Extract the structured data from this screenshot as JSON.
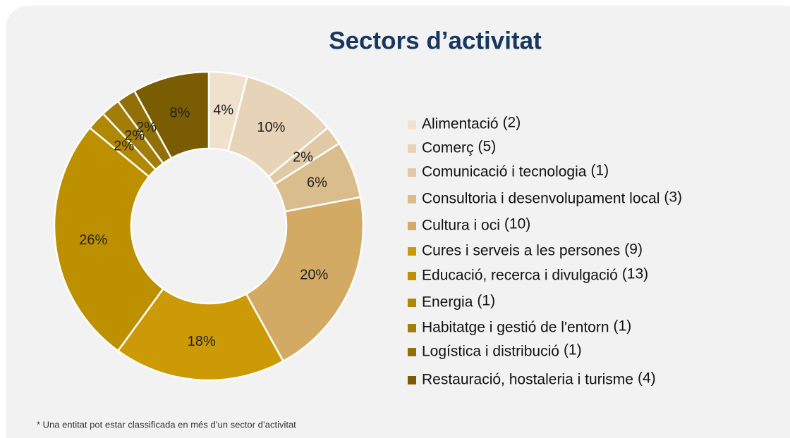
{
  "chart_data": {
    "type": "donut",
    "title": "Sectors d’activitat",
    "categories": [
      "Alimentació",
      "Comerç",
      "Comunicació i tecnologia",
      "Consultoria i desenvolupament local",
      "Cultura i oci",
      "Cures i serveis a les persones",
      "Educació, recerca i divulgació",
      "Energia",
      "Habitatge i gestió de l'entorn",
      "Logística i distribució",
      "Restauració, hostaleria i turisme"
    ],
    "values": [
      4,
      10,
      2,
      6,
      20,
      18,
      26,
      2,
      2,
      2,
      8
    ],
    "value_labels": [
      "4%",
      "10%",
      "2%",
      "6%",
      "20%",
      "18%",
      "26%",
      "2%",
      "2%",
      "2%",
      "8%"
    ],
    "legend_counts": [
      "(2)",
      "(5)",
      "(1)",
      "(3)",
      "(10)",
      "(9)",
      "(13)",
      "(1)",
      "(1)",
      "(1)",
      "(4)"
    ],
    "colors": [
      "#efe1cc",
      "#e7d4b8",
      "#e0c9a4",
      "#dabd8c",
      "#d3aa64",
      "#cc9a06",
      "#bd9000",
      "#b08803",
      "#a27d08",
      "#917008",
      "#7a5c02"
    ],
    "footnote": "* Una entitat pot estar classificada en més d’un sector d’activitat"
  }
}
